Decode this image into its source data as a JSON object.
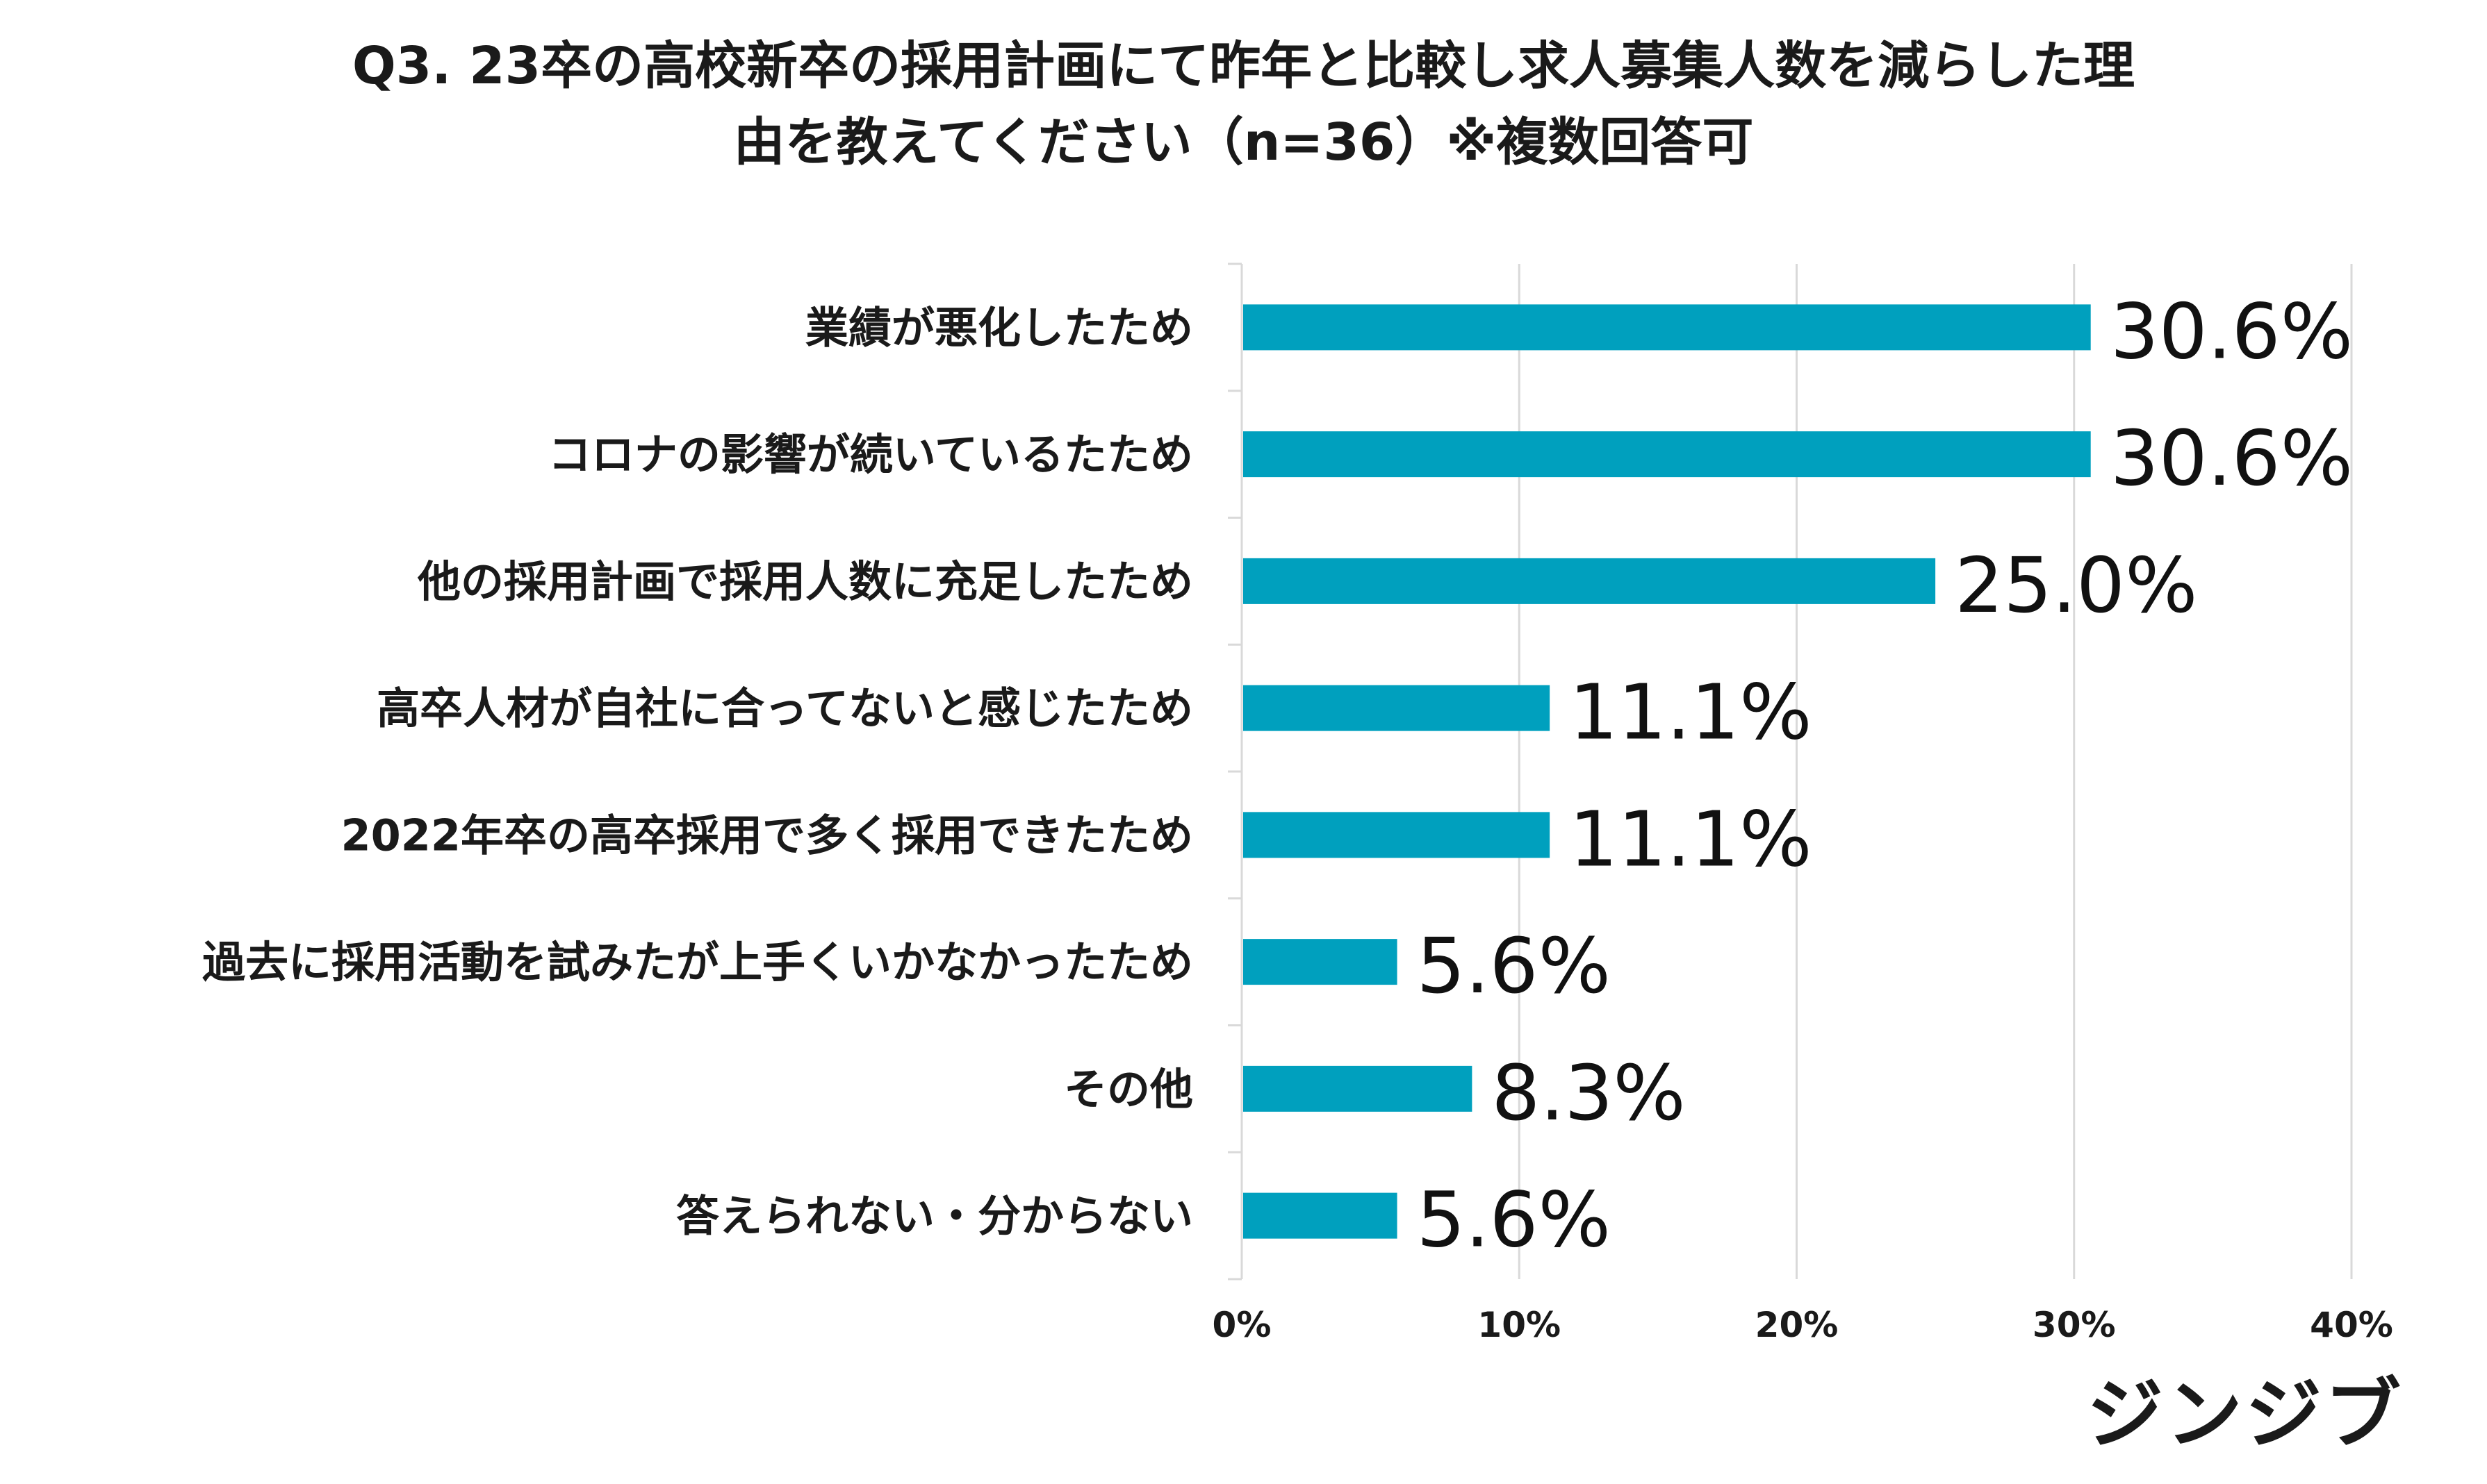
{
  "chart_data": {
    "type": "bar",
    "orientation": "horizontal",
    "title_lines": [
      "Q3. 23卒の高校新卒の採用計画にて昨年と比較し求人募集人数を減らした理",
      "由を教えてください（n=36）※複数回答可"
    ],
    "categories": [
      "業績が悪化したため",
      "コロナの影響が続いているたため",
      "他の採用計画で採用人数に充足したため",
      "高卒人材が自社に合ってないと感じたため",
      "2022年卒の高卒採用で多く採用できたため",
      "過去に採用活動を試みたが上手くいかなかったため",
      "その他",
      "答えられない・分からない"
    ],
    "values": [
      30.6,
      30.6,
      25.0,
      11.1,
      11.1,
      5.6,
      8.3,
      5.6
    ],
    "value_labels": [
      "30.6%",
      "30.6%",
      "25.0%",
      "11.1%",
      "11.1%",
      "5.6%",
      "8.3%",
      "5.6%"
    ],
    "xlim": [
      0,
      40
    ],
    "x_ticks": [
      0,
      10,
      20,
      30,
      40
    ],
    "x_tick_labels": [
      "0%",
      "10%",
      "20%",
      "30%",
      "40%"
    ],
    "grid": true,
    "bar_color": "#00A0BE"
  },
  "brand": {
    "logo_text": "ジンジブ"
  }
}
